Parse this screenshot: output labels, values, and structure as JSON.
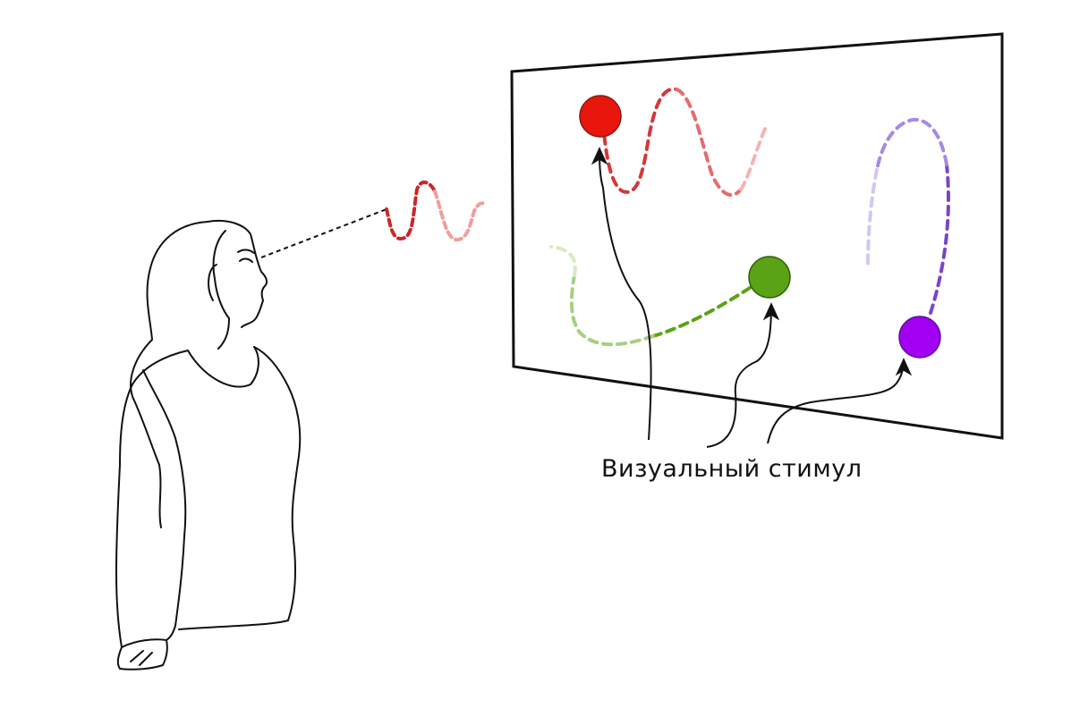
{
  "caption": "Визуальный стимул",
  "colors": {
    "red": "#e8160c",
    "green": "#5aa316",
    "purple": "#a100f2",
    "line": "#111111"
  },
  "stimuli": [
    {
      "name": "red-stimulus",
      "color": "#e8160c"
    },
    {
      "name": "green-stimulus",
      "color": "#5aa316"
    },
    {
      "name": "purple-stimulus",
      "color": "#a100f2"
    }
  ]
}
